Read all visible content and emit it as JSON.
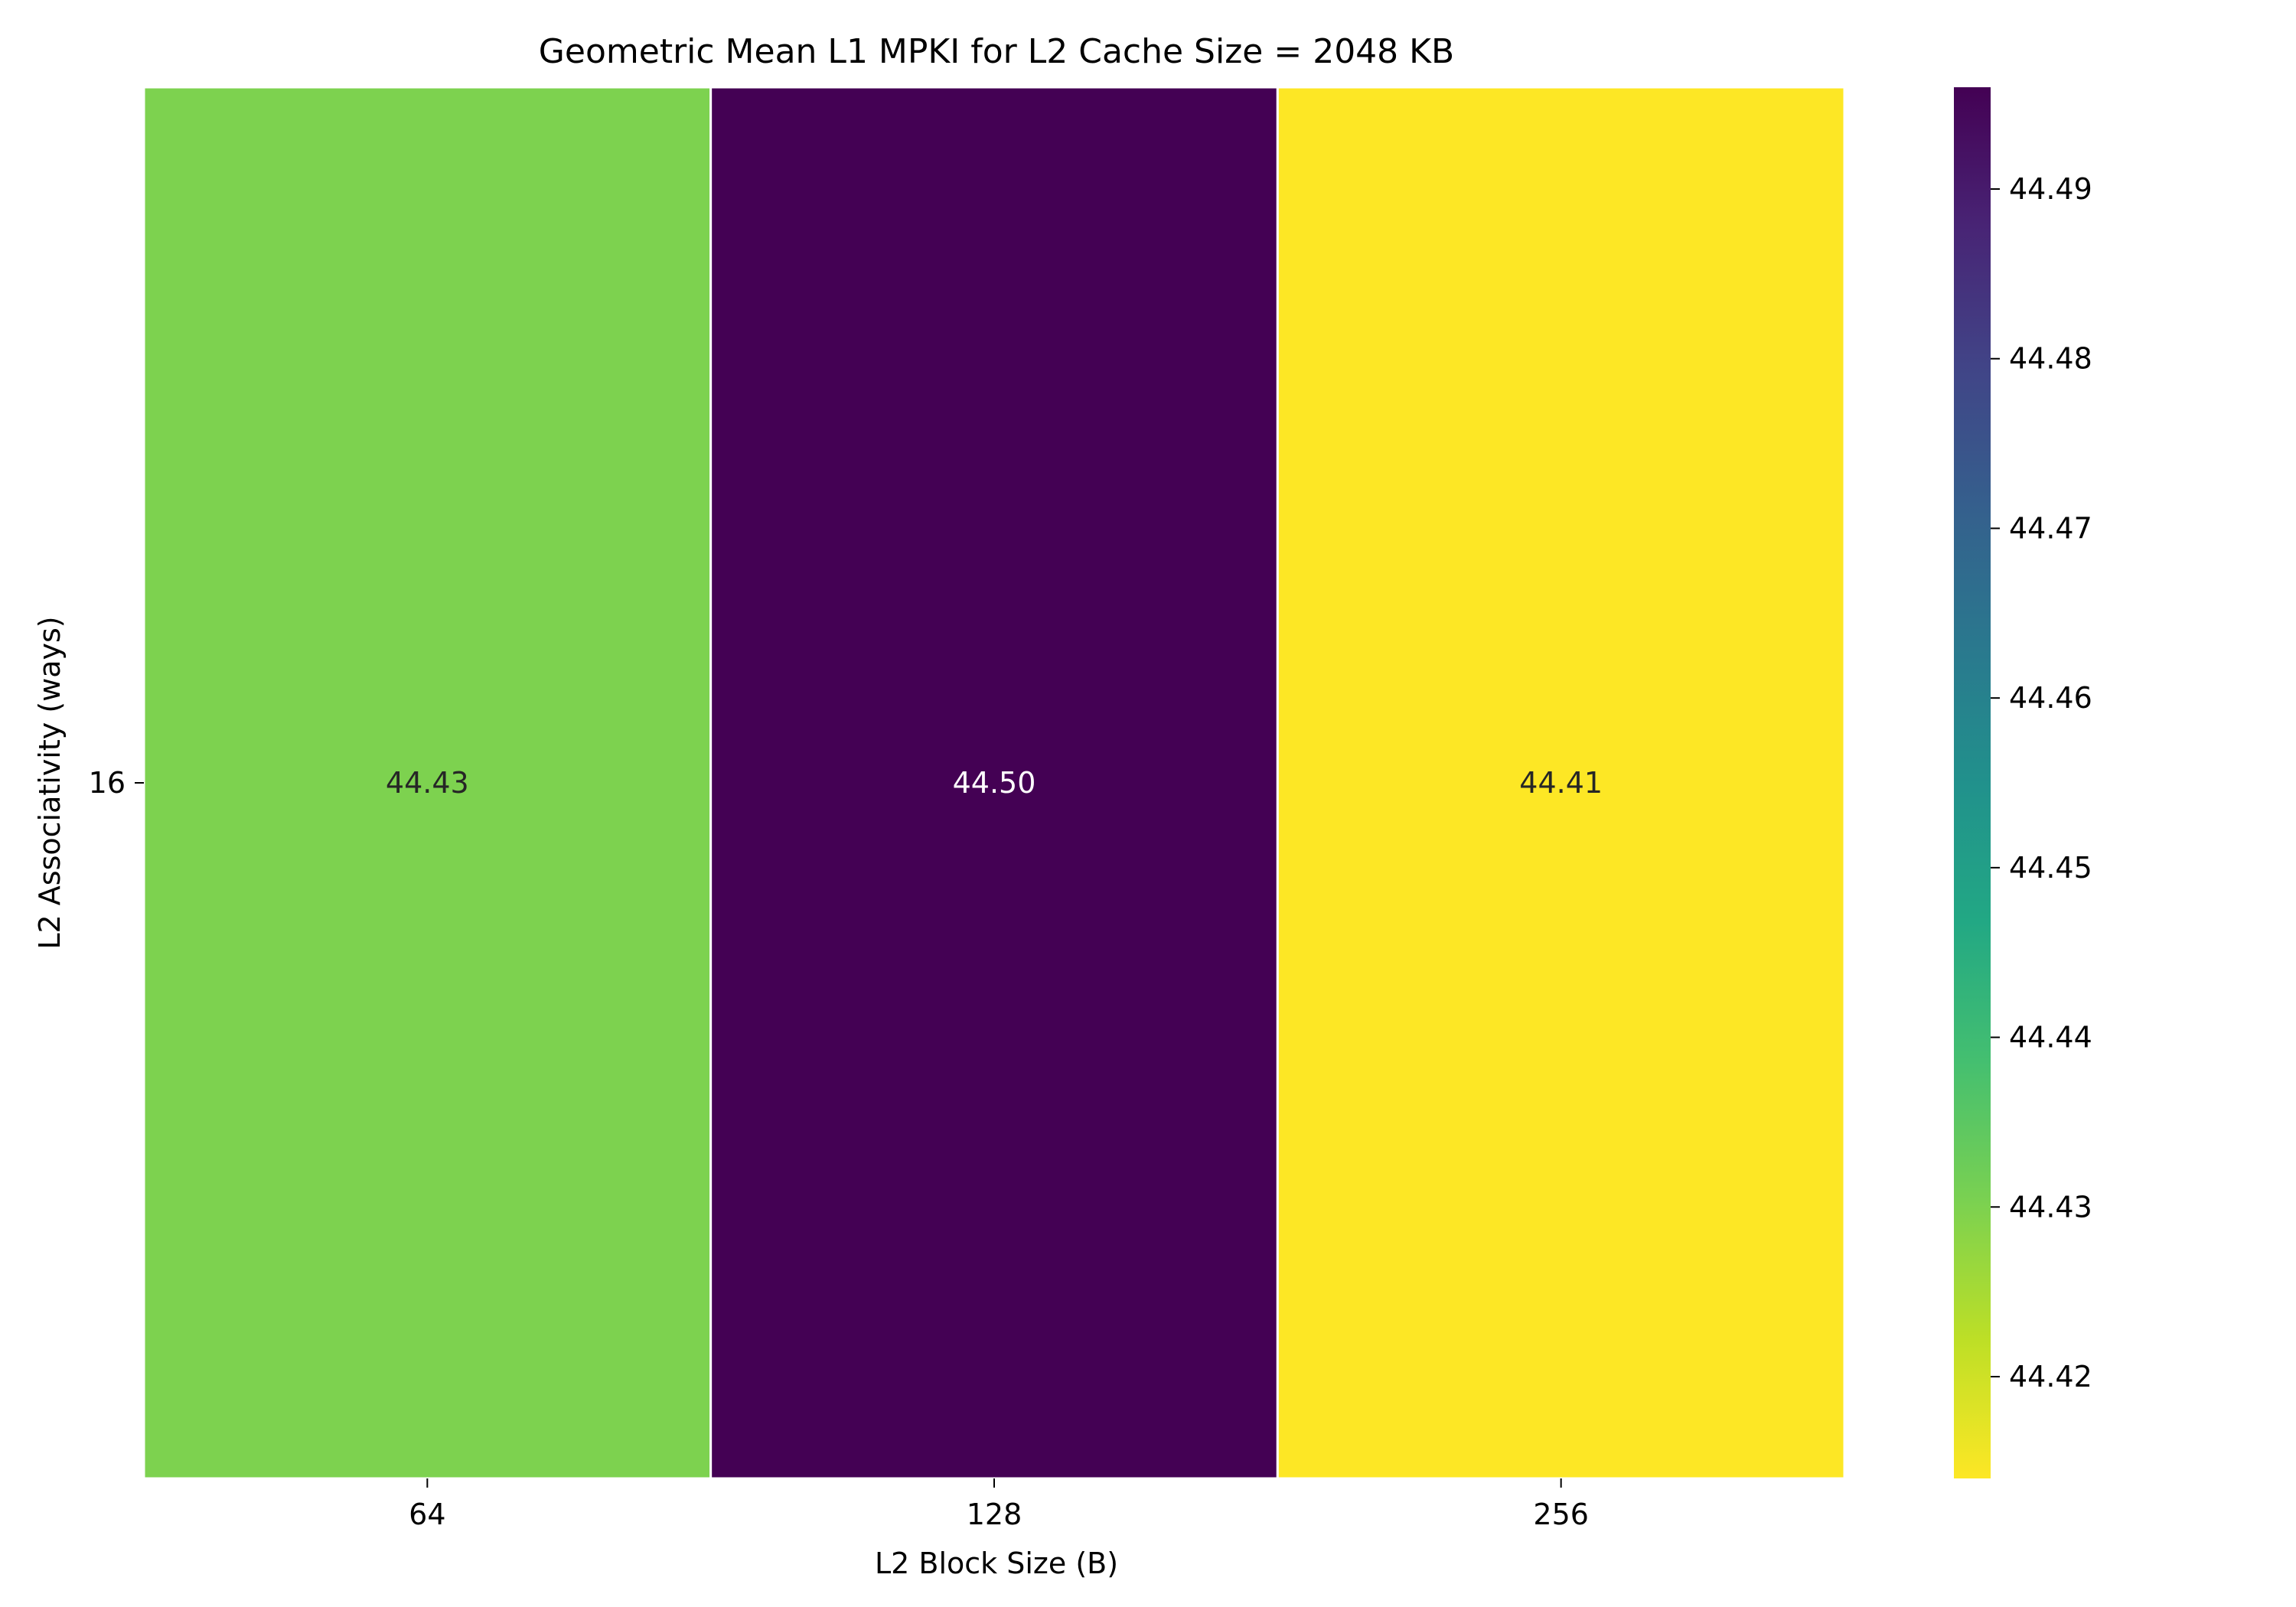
{
  "chart_data": {
    "type": "heatmap",
    "title": "Geometric Mean L1 MPKI for L2 Cache Size = 2048 KB",
    "xlabel": "L2 Block Size (B)",
    "ylabel": "L2 Associativity (ways)",
    "x_categories": [
      "64",
      "128",
      "256"
    ],
    "y_categories": [
      "16"
    ],
    "values": [
      [
        44.43,
        44.5,
        44.41
      ]
    ],
    "value_labels": [
      [
        "44.43",
        "44.50",
        "44.41"
      ]
    ],
    "colormap": "viridis_r",
    "colorbar": {
      "range": [
        44.414,
        44.496
      ],
      "ticks": [
        44.42,
        44.43,
        44.44,
        44.45,
        44.46,
        44.47,
        44.48,
        44.49
      ],
      "tick_labels": [
        "44.42",
        "44.43",
        "44.44",
        "44.45",
        "44.46",
        "44.47",
        "44.48",
        "44.49"
      ]
    },
    "grid": false,
    "cell_separator_color": "#ffffff"
  }
}
